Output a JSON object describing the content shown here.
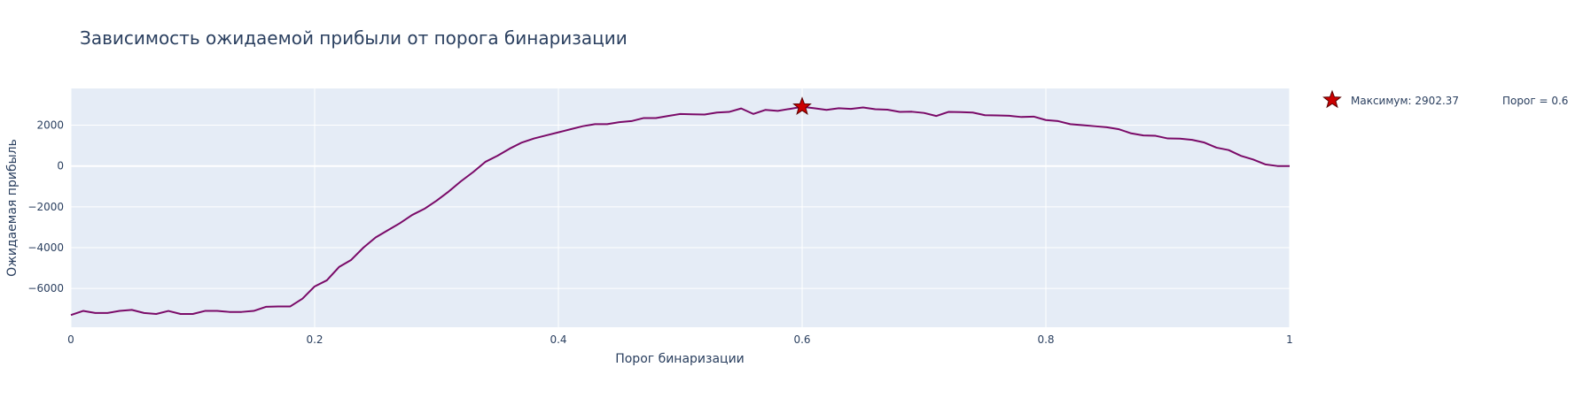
{
  "chart_data": {
    "type": "line",
    "title": "Зависимость ожидаемой прибыли от порога бинаризации",
    "xlabel": "Порог бинаризации",
    "ylabel": "Ожидаемая прибыль",
    "xlim": [
      0,
      1
    ],
    "ylim": [
      -7900,
      3800
    ],
    "x_ticks": [
      0,
      0.2,
      0.4,
      0.6,
      0.8,
      1
    ],
    "x_tick_labels": [
      "0",
      "0.2",
      "0.4",
      "0.6",
      "0.8",
      "1"
    ],
    "y_ticks": [
      -6000,
      -4000,
      -2000,
      0,
      2000
    ],
    "y_tick_labels": [
      "−6000",
      "−4000",
      "−2000",
      "0",
      "2000"
    ],
    "grid": true,
    "legend_position": "top-right",
    "colors": {
      "line": "#7a0a68",
      "marker_fill": "#cc0000",
      "marker_stroke": "#5a0000",
      "plot_bg": "#e5ecf6",
      "grid": "#ffffff"
    },
    "series": [
      {
        "x": [
          0.0,
          0.01,
          0.02,
          0.03,
          0.04,
          0.05,
          0.06,
          0.07,
          0.08,
          0.09,
          0.1,
          0.11,
          0.12,
          0.13,
          0.14,
          0.15,
          0.16,
          0.17,
          0.18,
          0.19,
          0.2,
          0.21,
          0.22,
          0.23,
          0.24,
          0.25,
          0.26,
          0.27,
          0.28,
          0.29,
          0.3,
          0.31,
          0.32,
          0.33,
          0.34,
          0.35,
          0.36,
          0.37,
          0.38,
          0.39,
          0.4,
          0.41,
          0.42,
          0.43,
          0.44,
          0.45,
          0.46,
          0.47,
          0.48,
          0.49,
          0.5,
          0.51,
          0.52,
          0.53,
          0.54,
          0.55,
          0.56,
          0.57,
          0.58,
          0.59,
          0.6,
          0.61,
          0.62,
          0.63,
          0.64,
          0.65,
          0.66,
          0.67,
          0.68,
          0.69,
          0.7,
          0.71,
          0.72,
          0.73,
          0.74,
          0.75,
          0.76,
          0.77,
          0.78,
          0.79,
          0.8,
          0.81,
          0.82,
          0.83,
          0.84,
          0.85,
          0.86,
          0.87,
          0.88,
          0.89,
          0.9,
          0.91,
          0.92,
          0.93,
          0.94,
          0.95,
          0.96,
          0.97,
          0.98,
          0.99,
          1.0
        ],
        "y": [
          -7300,
          -7100,
          -7200,
          -7200,
          -7100,
          -7050,
          -7200,
          -7250,
          -7100,
          -7250,
          -7250,
          -7100,
          -7100,
          -7150,
          -7150,
          -7100,
          -6900,
          -6880,
          -6880,
          -6500,
          -5900,
          -5600,
          -4950,
          -4600,
          -4000,
          -3500,
          -3150,
          -2800,
          -2400,
          -2100,
          -1700,
          -1250,
          -750,
          -300,
          200,
          500,
          850,
          1150,
          1350,
          1500,
          1650,
          1800,
          1950,
          2050,
          2050,
          2150,
          2200,
          2350,
          2350,
          2450,
          2550,
          2530,
          2520,
          2620,
          2650,
          2820,
          2550,
          2750,
          2700,
          2800,
          2902,
          2830,
          2750,
          2830,
          2800,
          2870,
          2780,
          2760,
          2650,
          2660,
          2600,
          2450,
          2650,
          2640,
          2620,
          2490,
          2480,
          2460,
          2400,
          2420,
          2250,
          2200,
          2050,
          2000,
          1950,
          1900,
          1800,
          1600,
          1500,
          1480,
          1350,
          1340,
          1280,
          1150,
          900,
          780,
          500,
          320,
          80,
          0,
          0
        ]
      }
    ],
    "marker": {
      "x": 0.6,
      "y": 2902.37,
      "legend_label": "Максимум: 2902.37"
    },
    "annotation": "Порог = 0.6"
  }
}
